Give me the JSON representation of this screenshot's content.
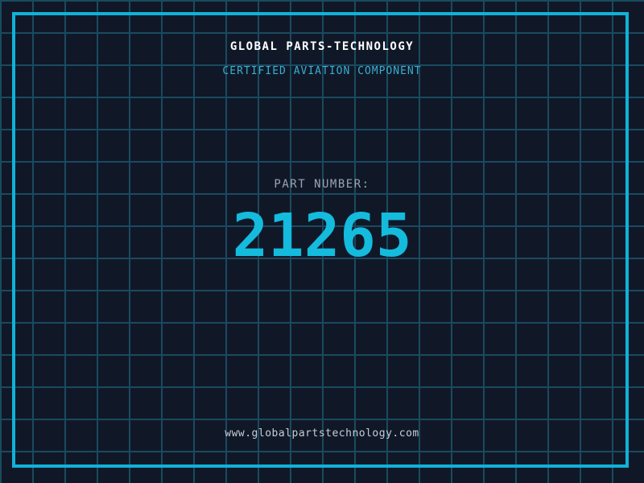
{
  "header": {
    "title": "GLOBAL PARTS-TECHNOLOGY",
    "subtitle": "CERTIFIED AVIATION COMPONENT"
  },
  "part": {
    "label": "PART NUMBER:",
    "number": "21265"
  },
  "footer": {
    "url": "www.globalpartstechnology.com"
  },
  "colors": {
    "background": "#101828",
    "grid_line": "#1a4a5f",
    "border_accent": "#10b2d8",
    "title_text": "#ffffff",
    "subtitle_text": "#3aaecf",
    "label_text": "#9aa5b1",
    "number_text": "#14bbdd",
    "footer_text": "#c5ced6"
  }
}
